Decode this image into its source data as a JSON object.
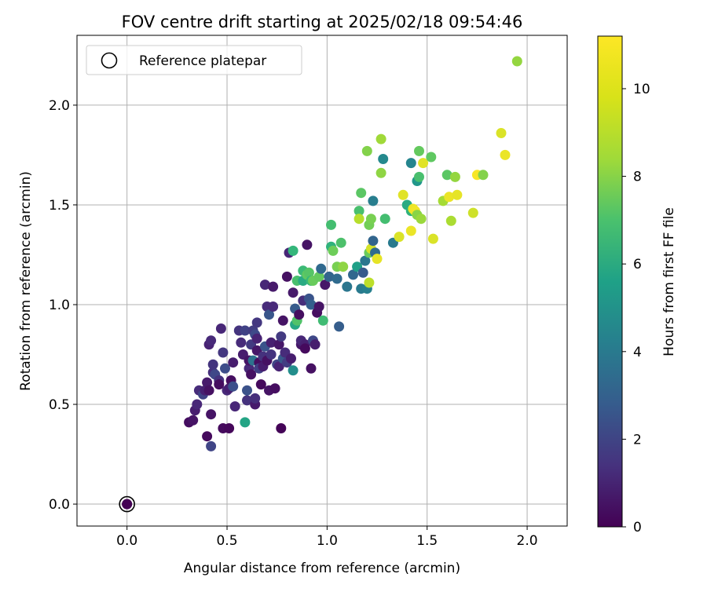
{
  "chart_data": {
    "type": "scatter",
    "title": "FOV centre drift starting at 2025/02/18 09:54:46",
    "xlabel": "Angular distance from reference (arcmin)",
    "ylabel": "Rotation from reference (arcmin)",
    "xlim": [
      -0.25,
      2.2
    ],
    "ylim": [
      -0.11,
      2.35
    ],
    "xticks": [
      "0.0",
      "0.5",
      "1.0",
      "1.5",
      "2.0"
    ],
    "yticks": [
      "0.0",
      "0.5",
      "1.0",
      "1.5",
      "2.0"
    ],
    "grid": true,
    "legend": {
      "position": "top-left",
      "entries": [
        "Reference platepar"
      ]
    },
    "colorbar": {
      "label": "Hours from first FF file",
      "range": [
        0,
        11.2
      ],
      "ticks": [
        "0",
        "2",
        "4",
        "6",
        "8",
        "10"
      ],
      "colormap": "viridis"
    },
    "reference_point": {
      "x": 0.0,
      "y": 0.0,
      "c": 0
    },
    "points": [
      [
        0.0,
        0.0,
        0.0
      ],
      [
        0.31,
        0.41,
        0.4
      ],
      [
        0.33,
        0.42,
        0.6
      ],
      [
        0.34,
        0.47,
        0.9
      ],
      [
        0.35,
        0.5,
        1.2
      ],
      [
        0.36,
        0.57,
        1.4
      ],
      [
        0.38,
        0.55,
        2.2
      ],
      [
        0.39,
        0.57,
        1.0
      ],
      [
        0.4,
        0.34,
        0.3
      ],
      [
        0.4,
        0.61,
        0.8
      ],
      [
        0.41,
        0.57,
        0.5
      ],
      [
        0.41,
        0.8,
        1.1
      ],
      [
        0.42,
        0.82,
        1.3
      ],
      [
        0.42,
        0.45,
        0.6
      ],
      [
        0.42,
        0.29,
        2.3
      ],
      [
        0.43,
        0.66,
        1.5
      ],
      [
        0.43,
        0.7,
        1.7
      ],
      [
        0.44,
        0.65,
        2.4
      ],
      [
        0.46,
        0.62,
        1.6
      ],
      [
        0.46,
        0.6,
        0.4
      ],
      [
        0.47,
        0.88,
        1.2
      ],
      [
        0.48,
        0.38,
        0.3
      ],
      [
        0.48,
        0.76,
        1.8
      ],
      [
        0.49,
        0.68,
        2.6
      ],
      [
        0.5,
        0.57,
        1.3
      ],
      [
        0.51,
        0.58,
        1.0
      ],
      [
        0.51,
        0.38,
        0.2
      ],
      [
        0.52,
        0.62,
        0.4
      ],
      [
        0.53,
        0.59,
        2.7
      ],
      [
        0.53,
        0.71,
        0.9
      ],
      [
        0.54,
        0.49,
        1.2
      ],
      [
        0.56,
        0.87,
        1.7
      ],
      [
        0.57,
        0.81,
        1.4
      ],
      [
        0.58,
        0.75,
        0.9
      ],
      [
        0.59,
        0.41,
        6.5
      ],
      [
        0.59,
        0.87,
        2.2
      ],
      [
        0.6,
        0.52,
        1.6
      ],
      [
        0.6,
        0.57,
        2.8
      ],
      [
        0.61,
        0.68,
        1.3
      ],
      [
        0.61,
        0.72,
        0.6
      ],
      [
        0.62,
        0.8,
        1.9
      ],
      [
        0.62,
        0.65,
        0.5
      ],
      [
        0.63,
        0.72,
        4.2
      ],
      [
        0.63,
        0.87,
        2.0
      ],
      [
        0.64,
        0.5,
        0.8
      ],
      [
        0.64,
        0.53,
        1.5
      ],
      [
        0.64,
        0.85,
        2.5
      ],
      [
        0.65,
        0.83,
        1.1
      ],
      [
        0.65,
        0.77,
        0.7
      ],
      [
        0.65,
        0.91,
        1.8
      ],
      [
        0.66,
        0.71,
        0.4
      ],
      [
        0.66,
        0.68,
        2.1
      ],
      [
        0.67,
        0.6,
        0.3
      ],
      [
        0.68,
        0.74,
        1.6
      ],
      [
        0.68,
        0.69,
        0.9
      ],
      [
        0.69,
        1.1,
        1.2
      ],
      [
        0.69,
        0.79,
        2.9
      ],
      [
        0.7,
        0.72,
        0.5
      ],
      [
        0.7,
        0.99,
        1.4
      ],
      [
        0.71,
        0.95,
        3.0
      ],
      [
        0.71,
        0.57,
        0.6
      ],
      [
        0.72,
        0.81,
        1.0
      ],
      [
        0.72,
        0.75,
        1.7
      ],
      [
        0.73,
        1.09,
        0.8
      ],
      [
        0.73,
        0.99,
        1.3
      ],
      [
        0.74,
        0.58,
        0.4
      ],
      [
        0.75,
        0.7,
        2.3
      ],
      [
        0.76,
        0.69,
        1.1
      ],
      [
        0.76,
        0.8,
        0.7
      ],
      [
        0.77,
        0.84,
        1.9
      ],
      [
        0.77,
        0.38,
        0.1
      ],
      [
        0.78,
        0.73,
        3.1
      ],
      [
        0.78,
        0.92,
        0.6
      ],
      [
        0.79,
        0.76,
        1.4
      ],
      [
        0.8,
        1.14,
        0.5
      ],
      [
        0.8,
        0.71,
        2.0
      ],
      [
        0.81,
        1.26,
        1.2
      ],
      [
        0.82,
        0.73,
        0.9
      ],
      [
        0.83,
        1.06,
        0.8
      ],
      [
        0.83,
        0.67,
        5.5
      ],
      [
        0.83,
        1.27,
        7.4
      ],
      [
        0.84,
        0.98,
        3.2
      ],
      [
        0.84,
        0.9,
        6.7
      ],
      [
        0.85,
        0.92,
        8.1
      ],
      [
        0.85,
        1.12,
        7.9
      ],
      [
        0.86,
        0.95,
        0.4
      ],
      [
        0.87,
        0.8,
        0.7
      ],
      [
        0.87,
        0.82,
        1.2
      ],
      [
        0.88,
        1.17,
        7.6
      ],
      [
        0.88,
        1.02,
        1.5
      ],
      [
        0.88,
        1.12,
        6.8
      ],
      [
        0.89,
        0.8,
        1.0
      ],
      [
        0.89,
        0.78,
        0.3
      ],
      [
        0.9,
        1.15,
        8.4
      ],
      [
        0.9,
        1.3,
        0.6
      ],
      [
        0.91,
        1.03,
        2.9
      ],
      [
        0.91,
        1.16,
        8.2
      ],
      [
        0.92,
        1.0,
        3.4
      ],
      [
        0.92,
        0.68,
        0.5
      ],
      [
        0.92,
        1.12,
        7.5
      ],
      [
        0.93,
        0.82,
        2.4
      ],
      [
        0.93,
        1.12,
        8.6
      ],
      [
        0.94,
        0.8,
        0.9
      ],
      [
        0.95,
        0.96,
        0.4
      ],
      [
        0.96,
        1.14,
        8.5
      ],
      [
        0.96,
        0.99,
        0.6
      ],
      [
        0.97,
        1.18,
        3.8
      ],
      [
        0.98,
        0.92,
        7.7
      ],
      [
        0.99,
        1.1,
        0.7
      ],
      [
        1.01,
        1.14,
        3.6
      ],
      [
        1.02,
        1.29,
        7.2
      ],
      [
        1.02,
        1.4,
        7.8
      ],
      [
        1.03,
        1.27,
        8.7
      ],
      [
        1.05,
        1.19,
        8.9
      ],
      [
        1.05,
        1.13,
        3.9
      ],
      [
        1.06,
        0.89,
        3.3
      ],
      [
        1.07,
        1.31,
        8.0
      ],
      [
        1.08,
        1.19,
        9.3
      ],
      [
        1.1,
        1.09,
        4.4
      ],
      [
        1.13,
        1.15,
        3.7
      ],
      [
        1.15,
        1.19,
        6.3
      ],
      [
        1.16,
        1.47,
        7.9
      ],
      [
        1.16,
        1.43,
        10.0
      ],
      [
        1.17,
        1.56,
        8.3
      ],
      [
        1.17,
        1.08,
        4.6
      ],
      [
        1.18,
        1.16,
        3.2
      ],
      [
        1.19,
        1.22,
        4.4
      ],
      [
        1.2,
        1.77,
        9.1
      ],
      [
        1.2,
        1.08,
        4.9
      ],
      [
        1.21,
        1.11,
        10.1
      ],
      [
        1.21,
        1.4,
        8.8
      ],
      [
        1.21,
        1.26,
        8.6
      ],
      [
        1.22,
        1.43,
        8.9
      ],
      [
        1.22,
        1.28,
        10.5
      ],
      [
        1.23,
        1.32,
        3.6
      ],
      [
        1.23,
        1.52,
        4.8
      ],
      [
        1.24,
        1.26,
        3.9
      ],
      [
        1.25,
        1.23,
        10.8
      ],
      [
        1.27,
        1.83,
        9.6
      ],
      [
        1.27,
        1.66,
        9.3
      ],
      [
        1.28,
        1.73,
        5.3
      ],
      [
        1.29,
        1.43,
        7.8
      ],
      [
        1.33,
        1.31,
        4.6
      ],
      [
        1.36,
        1.34,
        10.6
      ],
      [
        1.38,
        1.55,
        10.7
      ],
      [
        1.4,
        1.5,
        6.8
      ],
      [
        1.42,
        1.47,
        7.2
      ],
      [
        1.42,
        1.71,
        5.1
      ],
      [
        1.42,
        1.37,
        10.9
      ],
      [
        1.43,
        1.48,
        10.9
      ],
      [
        1.44,
        1.47,
        11.0
      ],
      [
        1.45,
        1.45,
        9.2
      ],
      [
        1.45,
        1.62,
        5.9
      ],
      [
        1.46,
        1.64,
        7.9
      ],
      [
        1.46,
        1.77,
        8.5
      ],
      [
        1.47,
        1.43,
        9.5
      ],
      [
        1.48,
        1.71,
        10.7
      ],
      [
        1.52,
        1.74,
        8.4
      ],
      [
        1.53,
        1.33,
        10.6
      ],
      [
        1.58,
        1.52,
        9.7
      ],
      [
        1.6,
        1.65,
        8.3
      ],
      [
        1.61,
        1.54,
        10.9
      ],
      [
        1.62,
        1.42,
        9.8
      ],
      [
        1.64,
        1.64,
        9.4
      ],
      [
        1.65,
        1.55,
        10.8
      ],
      [
        1.73,
        1.46,
        10.4
      ],
      [
        1.75,
        1.65,
        11.1
      ],
      [
        1.78,
        1.65,
        9.1
      ],
      [
        1.87,
        1.86,
        10.6
      ],
      [
        1.89,
        1.75,
        10.9
      ],
      [
        1.95,
        2.22,
        9.4
      ]
    ]
  }
}
